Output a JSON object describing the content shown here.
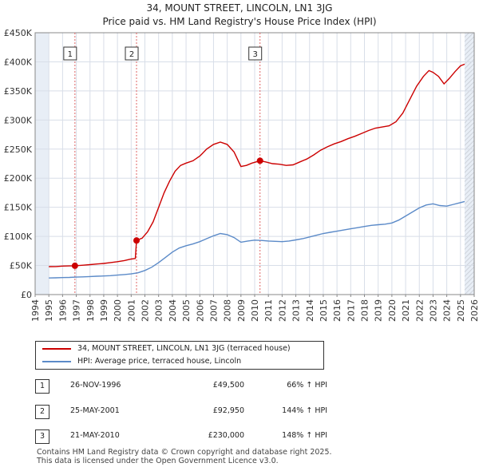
{
  "chart_data": {
    "type": "line",
    "title": "34, MOUNT STREET, LINCOLN, LN1 3JG",
    "subtitle": "Price paid vs. HM Land Registry's House Price Index (HPI)",
    "xlim": [
      1994,
      2026
    ],
    "ylim": [
      0,
      450000
    ],
    "x_ticks": [
      "1994",
      "1995",
      "1996",
      "1997",
      "1998",
      "1999",
      "2000",
      "2001",
      "2002",
      "2003",
      "2004",
      "2005",
      "2006",
      "2007",
      "2008",
      "2009",
      "2010",
      "2011",
      "2012",
      "2013",
      "2014",
      "2015",
      "2016",
      "2017",
      "2018",
      "2019",
      "2020",
      "2021",
      "2022",
      "2023",
      "2024",
      "2025",
      "2026"
    ],
    "y_ticks": [
      {
        "value": 0,
        "label": "£0"
      },
      {
        "value": 50000,
        "label": "£50K"
      },
      {
        "value": 100000,
        "label": "£100K"
      },
      {
        "value": 150000,
        "label": "£150K"
      },
      {
        "value": 200000,
        "label": "£200K"
      },
      {
        "value": 250000,
        "label": "£250K"
      },
      {
        "value": 300000,
        "label": "£300K"
      },
      {
        "value": 350000,
        "label": "£350K"
      },
      {
        "value": 400000,
        "label": "£400K"
      },
      {
        "value": 450000,
        "label": "£450K"
      }
    ],
    "data_range": [
      1995.0,
      2025.3
    ],
    "series": [
      {
        "name": "34, MOUNT STREET, LINCOLN, LN1 3JG (terraced house)",
        "color": "#cc0000",
        "points": [
          [
            1995.0,
            48000
          ],
          [
            1995.5,
            48200
          ],
          [
            1996.0,
            49000
          ],
          [
            1996.5,
            49200
          ],
          [
            1996.9,
            49500
          ],
          [
            1997.5,
            50500
          ],
          [
            1998.0,
            51500
          ],
          [
            1998.5,
            52500
          ],
          [
            1999.0,
            53500
          ],
          [
            1999.5,
            55000
          ],
          [
            2000.0,
            56500
          ],
          [
            2000.5,
            58500
          ],
          [
            2001.0,
            61000
          ],
          [
            2001.3,
            62000
          ],
          [
            2001.39,
            92950
          ],
          [
            2001.8,
            97000
          ],
          [
            2002.2,
            108000
          ],
          [
            2002.6,
            125000
          ],
          [
            2003.0,
            150000
          ],
          [
            2003.4,
            175000
          ],
          [
            2003.8,
            195000
          ],
          [
            2004.2,
            212000
          ],
          [
            2004.6,
            222000
          ],
          [
            2005.0,
            226000
          ],
          [
            2005.5,
            230000
          ],
          [
            2006.0,
            238000
          ],
          [
            2006.5,
            250000
          ],
          [
            2007.0,
            258000
          ],
          [
            2007.5,
            262000
          ],
          [
            2008.0,
            258000
          ],
          [
            2008.5,
            245000
          ],
          [
            2009.0,
            220000
          ],
          [
            2009.4,
            222000
          ],
          [
            2009.8,
            226000
          ],
          [
            2010.39,
            230000
          ],
          [
            2010.8,
            228000
          ],
          [
            2011.3,
            225000
          ],
          [
            2011.8,
            224000
          ],
          [
            2012.3,
            222000
          ],
          [
            2012.8,
            223000
          ],
          [
            2013.3,
            228000
          ],
          [
            2013.8,
            233000
          ],
          [
            2014.3,
            240000
          ],
          [
            2014.8,
            248000
          ],
          [
            2015.3,
            254000
          ],
          [
            2015.8,
            259000
          ],
          [
            2016.3,
            263000
          ],
          [
            2016.8,
            268000
          ],
          [
            2017.3,
            272000
          ],
          [
            2017.8,
            277000
          ],
          [
            2018.3,
            282000
          ],
          [
            2018.8,
            286000
          ],
          [
            2019.3,
            288000
          ],
          [
            2019.8,
            290000
          ],
          [
            2020.3,
            297000
          ],
          [
            2020.8,
            312000
          ],
          [
            2021.3,
            335000
          ],
          [
            2021.8,
            358000
          ],
          [
            2022.3,
            375000
          ],
          [
            2022.7,
            385000
          ],
          [
            2023.0,
            382000
          ],
          [
            2023.4,
            375000
          ],
          [
            2023.8,
            362000
          ],
          [
            2024.2,
            372000
          ],
          [
            2024.6,
            383000
          ],
          [
            2025.0,
            393000
          ],
          [
            2025.3,
            396000
          ]
        ]
      },
      {
        "name": "HPI: Average price, terraced house, Lincoln",
        "color": "#5b8ac8",
        "points": [
          [
            1995.0,
            28500
          ],
          [
            1995.5,
            28800
          ],
          [
            1996.0,
            29200
          ],
          [
            1996.5,
            29500
          ],
          [
            1997.0,
            30000
          ],
          [
            1997.5,
            30500
          ],
          [
            1998.0,
            31000
          ],
          [
            1998.5,
            31500
          ],
          [
            1999.0,
            32000
          ],
          [
            1999.5,
            32500
          ],
          [
            2000.0,
            33500
          ],
          [
            2000.5,
            34500
          ],
          [
            2001.0,
            35500
          ],
          [
            2001.5,
            37500
          ],
          [
            2002.0,
            41500
          ],
          [
            2002.5,
            47000
          ],
          [
            2003.0,
            55000
          ],
          [
            2003.5,
            64000
          ],
          [
            2004.0,
            73000
          ],
          [
            2004.5,
            80000
          ],
          [
            2005.0,
            84000
          ],
          [
            2005.5,
            87000
          ],
          [
            2006.0,
            91000
          ],
          [
            2006.5,
            96000
          ],
          [
            2007.0,
            101000
          ],
          [
            2007.5,
            105000
          ],
          [
            2008.0,
            103000
          ],
          [
            2008.5,
            98000
          ],
          [
            2009.0,
            90000
          ],
          [
            2009.5,
            92000
          ],
          [
            2010.0,
            93500
          ],
          [
            2010.5,
            93000
          ],
          [
            2011.0,
            92000
          ],
          [
            2011.5,
            91500
          ],
          [
            2012.0,
            91000
          ],
          [
            2012.5,
            92000
          ],
          [
            2013.0,
            94000
          ],
          [
            2013.5,
            96000
          ],
          [
            2014.0,
            99000
          ],
          [
            2014.5,
            102000
          ],
          [
            2015.0,
            105000
          ],
          [
            2015.5,
            107000
          ],
          [
            2016.0,
            109000
          ],
          [
            2016.5,
            111000
          ],
          [
            2017.0,
            113000
          ],
          [
            2017.5,
            115000
          ],
          [
            2018.0,
            117000
          ],
          [
            2018.5,
            119000
          ],
          [
            2019.0,
            120000
          ],
          [
            2019.5,
            121000
          ],
          [
            2020.0,
            123000
          ],
          [
            2020.5,
            128000
          ],
          [
            2021.0,
            135000
          ],
          [
            2021.5,
            142000
          ],
          [
            2022.0,
            149000
          ],
          [
            2022.5,
            154000
          ],
          [
            2023.0,
            156000
          ],
          [
            2023.5,
            153000
          ],
          [
            2024.0,
            152000
          ],
          [
            2024.5,
            155000
          ],
          [
            2025.0,
            158000
          ],
          [
            2025.3,
            160000
          ]
        ]
      }
    ],
    "markers": [
      {
        "label": "1",
        "x": 1996.9,
        "y": 49500
      },
      {
        "label": "2",
        "x": 2001.39,
        "y": 92950
      },
      {
        "label": "3",
        "x": 2010.39,
        "y": 230000
      }
    ]
  },
  "titles": {
    "line1": "34, MOUNT STREET, LINCOLN, LN1 3JG",
    "line2": "Price paid vs. HM Land Registry's House Price Index (HPI)"
  },
  "legend": {
    "property": "34, MOUNT STREET, LINCOLN, LN1 3JG (terraced house)",
    "hpi": "HPI: Average price, terraced house, Lincoln"
  },
  "sales": [
    {
      "num": "1",
      "date": "26-NOV-1996",
      "price": "£49,500",
      "hpi": "66% ↑ HPI"
    },
    {
      "num": "2",
      "date": "25-MAY-2001",
      "price": "£92,950",
      "hpi": "144% ↑ HPI"
    },
    {
      "num": "3",
      "date": "21-MAY-2010",
      "price": "£230,000",
      "hpi": "148% ↑ HPI"
    }
  ],
  "footer": {
    "line1": "Contains HM Land Registry data © Crown copyright and database right 2025.",
    "line2": "This data is licensed under the Open Government Licence v3.0."
  }
}
